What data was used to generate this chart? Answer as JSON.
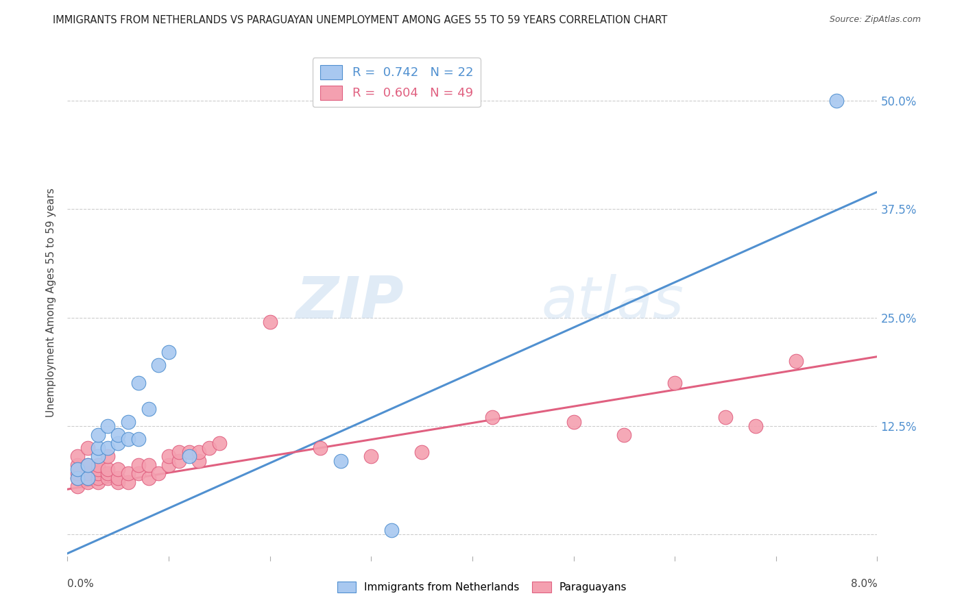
{
  "title": "IMMIGRANTS FROM NETHERLANDS VS PARAGUAYAN UNEMPLOYMENT AMONG AGES 55 TO 59 YEARS CORRELATION CHART",
  "source": "Source: ZipAtlas.com",
  "ylabel": "Unemployment Among Ages 55 to 59 years",
  "xlim": [
    0.0,
    0.08
  ],
  "ylim": [
    -0.025,
    0.56
  ],
  "yticks": [
    0.0,
    0.125,
    0.25,
    0.375,
    0.5
  ],
  "ytick_labels": [
    "",
    "12.5%",
    "25.0%",
    "37.5%",
    "50.0%"
  ],
  "blue_color": "#A8C8F0",
  "pink_color": "#F4A0B0",
  "blue_line_color": "#5090D0",
  "pink_line_color": "#E06080",
  "legend_blue_r": "R =  0.742",
  "legend_blue_n": "N = 22",
  "legend_pink_r": "R =  0.604",
  "legend_pink_n": "N = 49",
  "watermark_zip": "ZIP",
  "watermark_atlas": "atlas",
  "blue_reg": [
    -0.022,
    0.395
  ],
  "pink_reg": [
    0.052,
    0.205
  ],
  "blue_scatter_x": [
    0.001,
    0.001,
    0.002,
    0.002,
    0.003,
    0.003,
    0.003,
    0.004,
    0.004,
    0.005,
    0.005,
    0.006,
    0.006,
    0.007,
    0.007,
    0.008,
    0.009,
    0.01,
    0.012,
    0.027,
    0.032,
    0.076
  ],
  "blue_scatter_y": [
    0.065,
    0.075,
    0.065,
    0.08,
    0.09,
    0.1,
    0.115,
    0.1,
    0.125,
    0.105,
    0.115,
    0.11,
    0.13,
    0.11,
    0.175,
    0.145,
    0.195,
    0.21,
    0.09,
    0.085,
    0.005,
    0.5
  ],
  "pink_scatter_x": [
    0.001,
    0.001,
    0.001,
    0.001,
    0.001,
    0.002,
    0.002,
    0.002,
    0.002,
    0.002,
    0.003,
    0.003,
    0.003,
    0.003,
    0.003,
    0.004,
    0.004,
    0.004,
    0.004,
    0.005,
    0.005,
    0.005,
    0.006,
    0.006,
    0.007,
    0.007,
    0.008,
    0.008,
    0.009,
    0.01,
    0.01,
    0.011,
    0.011,
    0.012,
    0.013,
    0.013,
    0.014,
    0.015,
    0.02,
    0.025,
    0.03,
    0.035,
    0.042,
    0.05,
    0.055,
    0.06,
    0.065,
    0.068,
    0.072
  ],
  "pink_scatter_y": [
    0.055,
    0.065,
    0.07,
    0.08,
    0.09,
    0.06,
    0.065,
    0.07,
    0.08,
    0.1,
    0.06,
    0.065,
    0.07,
    0.075,
    0.08,
    0.065,
    0.07,
    0.075,
    0.09,
    0.06,
    0.065,
    0.075,
    0.06,
    0.07,
    0.07,
    0.08,
    0.065,
    0.08,
    0.07,
    0.08,
    0.09,
    0.085,
    0.095,
    0.095,
    0.085,
    0.095,
    0.1,
    0.105,
    0.245,
    0.1,
    0.09,
    0.095,
    0.135,
    0.13,
    0.115,
    0.175,
    0.135,
    0.125,
    0.2
  ]
}
